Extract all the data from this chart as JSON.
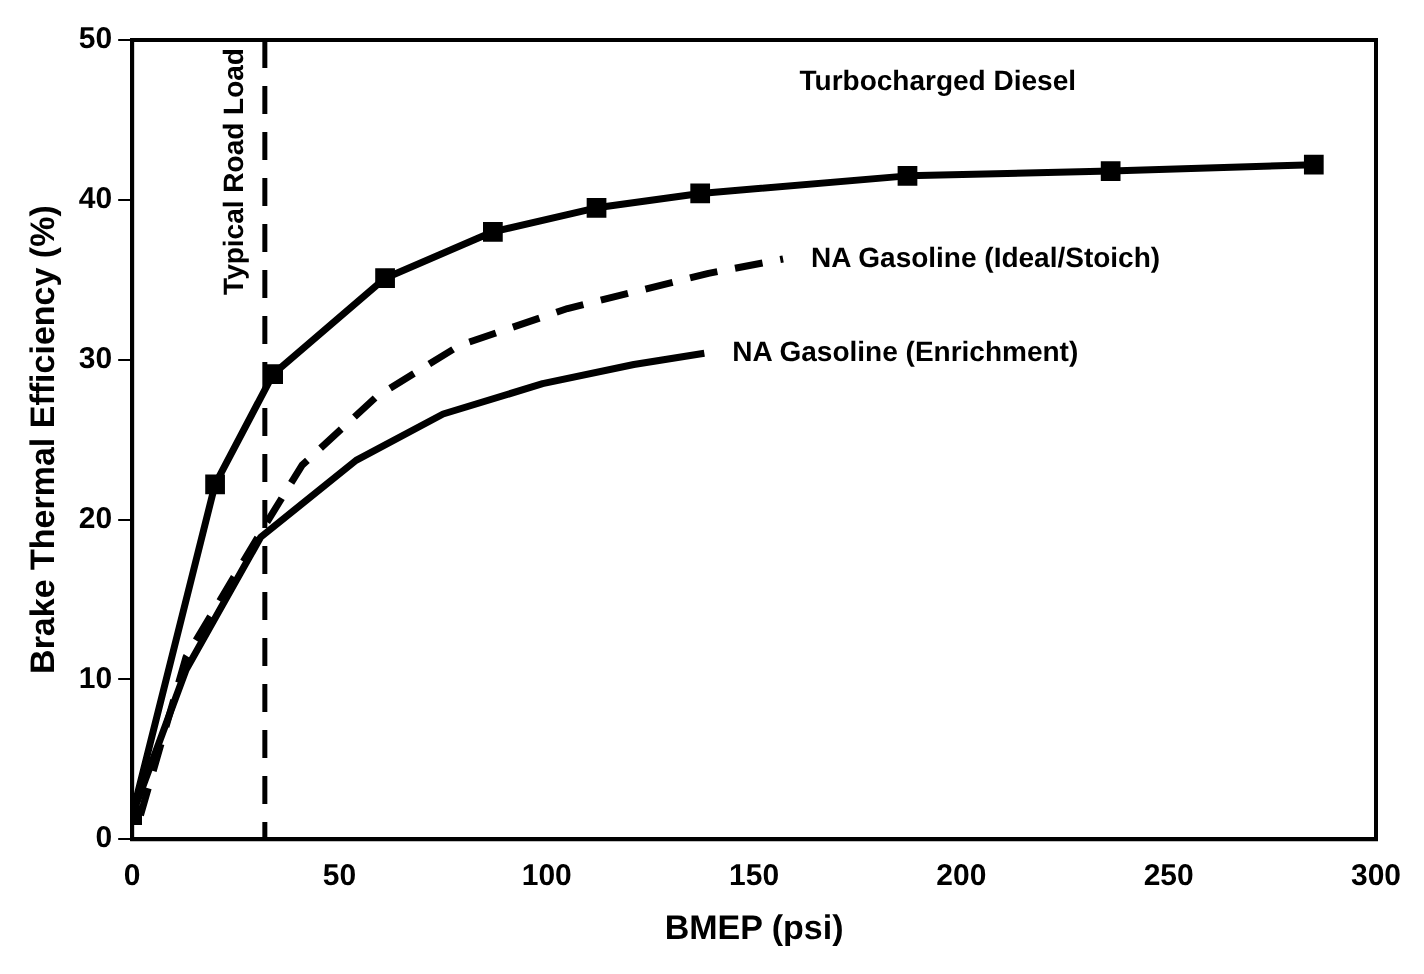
{
  "chart_data": {
    "type": "line",
    "xlabel": "BMEP (psi)",
    "ylabel": "Brake Thermal Efficiency (%)",
    "xlim": [
      0,
      300
    ],
    "xticks": [
      0,
      50,
      100,
      150,
      200,
      250,
      300
    ],
    "ylim": [
      0,
      50
    ],
    "yticks": [
      0,
      10,
      20,
      30,
      40,
      50
    ],
    "grid": false,
    "legend": false,
    "series": [
      {
        "name": "Turbocharged Diesel",
        "color": "#000000",
        "marker": "square",
        "line_style": "solid",
        "x": [
          0,
          20,
          34,
          61,
          87,
          112,
          137,
          187,
          236,
          285
        ],
        "values": [
          1.5,
          22.2,
          29.1,
          35.1,
          38,
          39.5,
          40.4,
          41.5,
          41.8,
          42.2
        ]
      },
      {
        "name": "NA Gasoline (Ideal/Stoich)",
        "color": "#000000",
        "marker": "none",
        "line_style": "dashed",
        "x": [
          2,
          13,
          31,
          41,
          59,
          79,
          105,
          139,
          157
        ],
        "values": [
          1.5,
          11.4,
          19.2,
          23.4,
          27.7,
          30.9,
          33.2,
          35.4,
          36.3
        ]
      },
      {
        "name": "NA Gasoline (Enrichment)",
        "color": "#000000",
        "marker": "none",
        "line_style": "solid",
        "x": [
          0,
          13,
          31,
          54,
          75,
          99,
          121,
          138
        ],
        "values": [
          1.5,
          10.6,
          18.9,
          23.7,
          26.6,
          28.5,
          29.7,
          30.4
        ]
      }
    ],
    "ref_lines": [
      {
        "axis": "x",
        "value": 32,
        "label": "Typical Road Load",
        "color": "#000000",
        "line_style": "dashed"
      }
    ]
  }
}
